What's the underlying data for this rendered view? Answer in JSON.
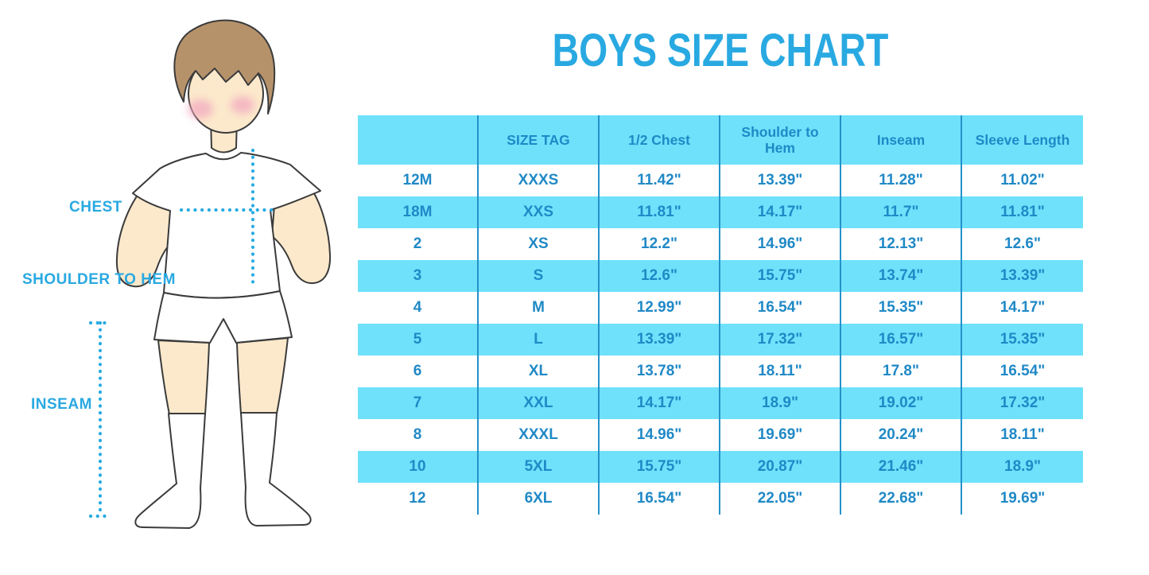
{
  "title": "BOYS SIZE CHART",
  "figure": {
    "labels": {
      "chest": "CHEST",
      "shoulder_to_hem": "SHOULDER TO HEM",
      "inseam": "INSEAM"
    }
  },
  "table": {
    "headers": [
      "",
      "SIZE TAG",
      "1/2 Chest",
      "Shoulder to Hem",
      "Inseam",
      "Sleeve Length"
    ],
    "rows": [
      [
        "12M",
        "XXXS",
        "11.42\"",
        "13.39\"",
        "11.28\"",
        "11.02\""
      ],
      [
        "18M",
        "XXS",
        "11.81\"",
        "14.17\"",
        "11.7\"",
        "11.81\""
      ],
      [
        "2",
        "XS",
        "12.2\"",
        "14.96\"",
        "12.13\"",
        "12.6\""
      ],
      [
        "3",
        "S",
        "12.6\"",
        "15.75\"",
        "13.74\"",
        "13.39\""
      ],
      [
        "4",
        "M",
        "12.99\"",
        "16.54\"",
        "15.35\"",
        "14.17\""
      ],
      [
        "5",
        "L",
        "13.39\"",
        "17.32\"",
        "16.57\"",
        "15.35\""
      ],
      [
        "6",
        "XL",
        "13.78\"",
        "18.11\"",
        "17.8\"",
        "16.54\""
      ],
      [
        "7",
        "XXL",
        "14.17\"",
        "18.9\"",
        "19.02\"",
        "17.32\""
      ],
      [
        "8",
        "XXXL",
        "14.96\"",
        "19.69\"",
        "20.24\"",
        "18.11\""
      ],
      [
        "10",
        "5XL",
        "15.75\"",
        "20.87\"",
        "21.46\"",
        "18.9\""
      ],
      [
        "12",
        "6XL",
        "16.54\"",
        "22.05\"",
        "22.68\"",
        "19.69\""
      ]
    ]
  },
  "colors": {
    "title_blue": "#29A9E1",
    "stripe_blue": "#6FE1FB",
    "cell_text_blue": "#2089C6",
    "divider_blue": "#2492CA",
    "dotted_line_blue": "#29ABE2",
    "skin": "#FCE9CB",
    "hair": "#B6926B",
    "cheek": "#F2A9C0"
  },
  "chart_data": {
    "type": "table",
    "title": "BOYS SIZE CHART",
    "columns": [
      "",
      "SIZE TAG",
      "1/2 Chest",
      "Shoulder to Hem",
      "Inseam",
      "Sleeve Length"
    ],
    "units": "inches",
    "rows": [
      [
        "12M",
        "XXXS",
        11.42,
        13.39,
        11.28,
        11.02
      ],
      [
        "18M",
        "XXS",
        11.81,
        14.17,
        11.7,
        11.81
      ],
      [
        "2",
        "XS",
        12.2,
        14.96,
        12.13,
        12.6
      ],
      [
        "3",
        "S",
        12.6,
        15.75,
        13.74,
        13.39
      ],
      [
        "4",
        "M",
        12.99,
        16.54,
        15.35,
        14.17
      ],
      [
        "5",
        "L",
        13.39,
        17.32,
        16.57,
        15.35
      ],
      [
        "6",
        "XL",
        13.78,
        18.11,
        17.8,
        16.54
      ],
      [
        "7",
        "XXL",
        14.17,
        18.9,
        19.02,
        17.32
      ],
      [
        "8",
        "XXXL",
        14.96,
        19.69,
        20.24,
        18.11
      ],
      [
        "10",
        "5XL",
        15.75,
        20.87,
        21.46,
        18.9
      ],
      [
        "12",
        "6XL",
        16.54,
        22.05,
        22.68,
        19.69
      ]
    ]
  }
}
